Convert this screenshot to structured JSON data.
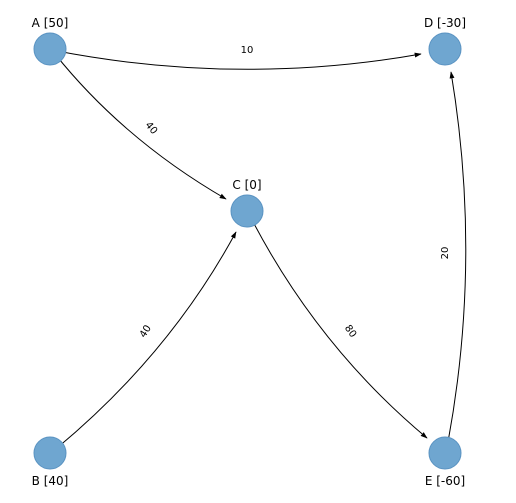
{
  "graph": {
    "node_color": "#6fa6d0",
    "node_stroke": "#5a93c2",
    "edge_color": "#000000",
    "nodes": [
      {
        "id": "A",
        "label": "A [50]"
      },
      {
        "id": "B",
        "label": "B [40]"
      },
      {
        "id": "C",
        "label": "C [0]"
      },
      {
        "id": "D",
        "label": "D [-30]"
      },
      {
        "id": "E",
        "label": "E [-60]"
      }
    ],
    "edges": [
      {
        "from": "A",
        "to": "D",
        "weight": "10"
      },
      {
        "from": "A",
        "to": "C",
        "weight": "40"
      },
      {
        "from": "B",
        "to": "C",
        "weight": "40"
      },
      {
        "from": "C",
        "to": "E",
        "weight": "80"
      },
      {
        "from": "E",
        "to": "D",
        "weight": "20"
      }
    ]
  }
}
